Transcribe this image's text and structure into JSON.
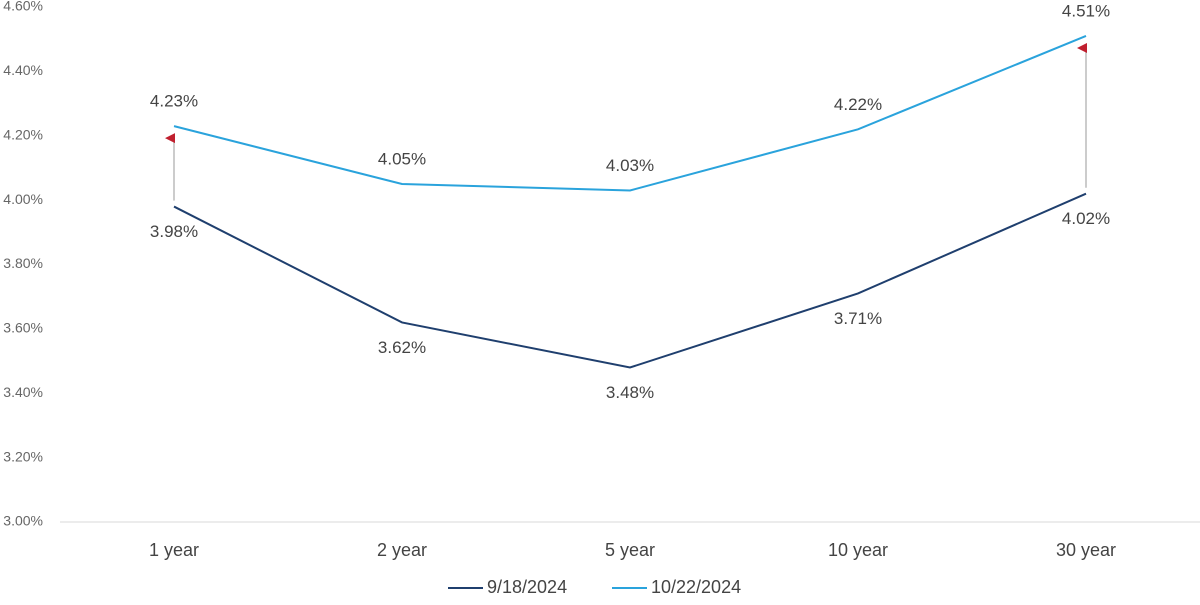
{
  "chart_data": {
    "type": "line",
    "categories": [
      "1 year",
      "2 year",
      "5 year",
      "10 year",
      "30 year"
    ],
    "series": [
      {
        "name": "9/18/2024",
        "color": "#1f3f6e",
        "values": [
          3.98,
          3.62,
          3.48,
          3.71,
          4.02
        ],
        "value_labels": [
          "3.98%",
          "3.62%",
          "3.48%",
          "3.71%",
          "4.02%"
        ]
      },
      {
        "name": "10/22/2024",
        "color": "#2aa3dc",
        "values": [
          4.23,
          4.05,
          4.03,
          4.22,
          4.51
        ],
        "value_labels": [
          "4.23%",
          "4.05%",
          "4.03%",
          "4.22%",
          "4.51%"
        ]
      }
    ],
    "ylim": [
      3,
      4.6
    ],
    "yticks": [
      {
        "value": 3,
        "label": "3.00%"
      },
      {
        "value": 3.2,
        "label": "3.20%"
      },
      {
        "value": 3.4,
        "label": "3.40%"
      },
      {
        "value": 3.6,
        "label": "3.60%"
      },
      {
        "value": 3.8,
        "label": "3.80%"
      },
      {
        "value": 4,
        "label": "4.00%"
      },
      {
        "value": 4.2,
        "label": "4.20%"
      },
      {
        "value": 4.4,
        "label": "4.40%"
      },
      {
        "value": 4.6,
        "label": "4.60%"
      }
    ],
    "grid": false,
    "legend": "bottom"
  }
}
